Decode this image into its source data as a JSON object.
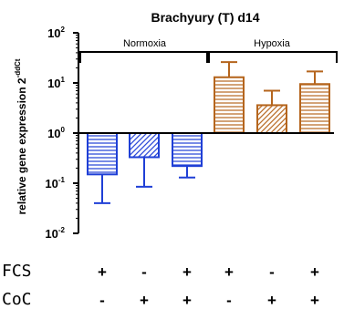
{
  "chart_data": {
    "type": "bar",
    "title": "Brachyury (T) d14",
    "ylabel": "relative gene expression 2",
    "ylabel_superscript": "-ddCt",
    "yscale": "log",
    "ylim": [
      0.01,
      100
    ],
    "ytick_values": [
      0.01,
      0.1,
      1,
      10,
      100
    ],
    "ytick_bases": [
      "10",
      "10",
      "10",
      "10",
      "10"
    ],
    "ytick_exponents": [
      "-2",
      "-1",
      "0",
      "1",
      "2"
    ],
    "baseline": 1,
    "groups": [
      {
        "label": "Normoxia",
        "bars": [
          0,
          1,
          2
        ]
      },
      {
        "label": "Hypoxia",
        "bars": [
          3,
          4,
          5
        ]
      }
    ],
    "colors": {
      "normoxia": "#1f3fd6",
      "hypoxia": "#b5651d"
    },
    "bars": [
      {
        "value": 0.15,
        "error_bound": 0.04,
        "pattern": "horizontal",
        "color": "#1f3fd6"
      },
      {
        "value": 0.33,
        "error_bound": 0.085,
        "pattern": "diagonal",
        "color": "#1f3fd6"
      },
      {
        "value": 0.22,
        "error_bound": 0.13,
        "pattern": "horizontal",
        "color": "#1f3fd6"
      },
      {
        "value": 13,
        "error_bound": 26,
        "pattern": "horizontal",
        "color": "#b5651d"
      },
      {
        "value": 3.6,
        "error_bound": 7,
        "pattern": "diagonal",
        "color": "#b5651d"
      },
      {
        "value": 9.5,
        "error_bound": 17,
        "pattern": "horizontal",
        "color": "#b5651d"
      }
    ],
    "conditions": [
      {
        "label": "FCS",
        "values": [
          "+",
          "-",
          "+",
          "+",
          "-",
          "+"
        ]
      },
      {
        "label": "CoC",
        "values": [
          "-",
          "+",
          "+",
          "-",
          "+",
          "+"
        ]
      }
    ]
  }
}
